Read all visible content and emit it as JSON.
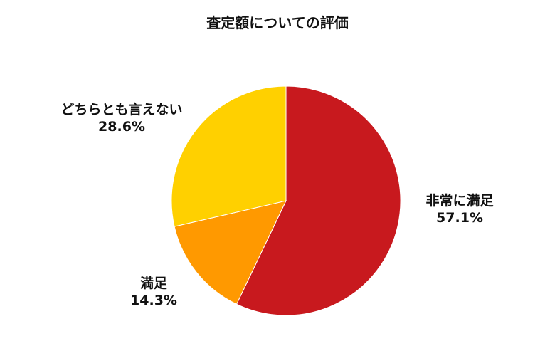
{
  "chart_data": {
    "type": "pie",
    "title": "査定額についての評価",
    "slices": [
      {
        "label": "非常に満足",
        "value": 57.1,
        "value_label": "57.1%",
        "color": "#C8191E"
      },
      {
        "label": "満足",
        "value": 14.3,
        "value_label": "14.3%",
        "color": "#FF9900"
      },
      {
        "label": "どちらとも言えない",
        "value": 28.6,
        "value_label": "28.6%",
        "color": "#FFD000"
      }
    ],
    "start": "12 o'clock",
    "direction": "clockwise",
    "legend": "none"
  }
}
